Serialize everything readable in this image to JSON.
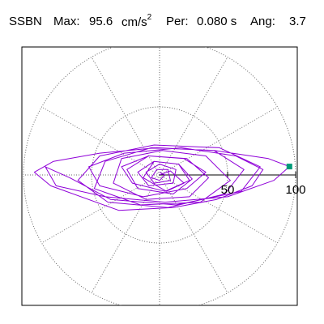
{
  "header": {
    "station": "SSBN",
    "max_label": "Max:",
    "max_value": "95.6",
    "max_unit": "cm/s",
    "max_unit_exp": "2",
    "per_label": "Per:",
    "per_value": "0.080 s",
    "ang_label": "Ang:",
    "ang_value": "3.7"
  },
  "colors": {
    "trace": "#8f00d8",
    "marker": "#009a78",
    "grid": "#666666",
    "frame": "#000000"
  },
  "chart_data": {
    "type": "scatter",
    "title": "",
    "coordinate_system": "polar",
    "r_ticks": [
      50,
      100
    ],
    "r_tick_labels": [
      "50",
      "100"
    ],
    "r_max": 100,
    "x_range": [
      -100,
      100
    ],
    "y_range": [
      -100,
      100
    ],
    "angular_grid_step_deg": 30,
    "grid": "dotted",
    "peak_point": {
      "x": 95.4,
      "y": 6.2,
      "magnitude": 95.6,
      "angle_deg": 3.7
    },
    "series": [
      {
        "type": "line",
        "points": [
          [
            0,
            0
          ],
          [
            8,
            3
          ],
          [
            18,
            -6
          ],
          [
            5,
            -12
          ],
          [
            -12,
            -2
          ],
          [
            -4,
            10
          ],
          [
            14,
            8
          ],
          [
            24,
            -3
          ],
          [
            10,
            -14
          ],
          [
            -16,
            -10
          ],
          [
            -24,
            4
          ],
          [
            -8,
            14
          ],
          [
            20,
            12
          ],
          [
            36,
            -2
          ],
          [
            22,
            -16
          ],
          [
            -10,
            -18
          ],
          [
            -34,
            -6
          ],
          [
            -28,
            12
          ],
          [
            2,
            18
          ],
          [
            34,
            14
          ],
          [
            52,
            -4
          ],
          [
            30,
            -20
          ],
          [
            -14,
            -22
          ],
          [
            -48,
            -10
          ],
          [
            -40,
            10
          ],
          [
            -6,
            20
          ],
          [
            40,
            18
          ],
          [
            62,
            4
          ],
          [
            48,
            -14
          ],
          [
            6,
            -24
          ],
          [
            -38,
            -20
          ],
          [
            -60,
            -4
          ],
          [
            -44,
            14
          ],
          [
            -4,
            22
          ],
          [
            44,
            20
          ],
          [
            74,
            6
          ],
          [
            60,
            -12
          ],
          [
            12,
            -22
          ],
          [
            -36,
            -18
          ],
          [
            -66,
            -2
          ],
          [
            -84,
            6
          ],
          [
            -76,
            -8
          ],
          [
            -40,
            -16
          ],
          [
            4,
            -20
          ],
          [
            50,
            -16
          ],
          [
            84,
            -4
          ],
          [
            95.4,
            6.2
          ],
          [
            80,
            12
          ],
          [
            40,
            18
          ],
          [
            -2,
            20
          ],
          [
            -44,
            16
          ],
          [
            -78,
            10
          ],
          [
            -92,
            2
          ],
          [
            -80,
            -8
          ],
          [
            -30,
            -26
          ],
          [
            10,
            -24
          ],
          [
            42,
            -18
          ],
          [
            68,
            -8
          ],
          [
            76,
            4
          ],
          [
            56,
            14
          ],
          [
            16,
            20
          ],
          [
            -26,
            16
          ],
          [
            -52,
            6
          ],
          [
            -44,
            -8
          ],
          [
            -12,
            -16
          ],
          [
            20,
            -10
          ],
          [
            34,
            2
          ],
          [
            18,
            12
          ],
          [
            -8,
            14
          ],
          [
            -28,
            6
          ],
          [
            -20,
            -6
          ],
          [
            4,
            -12
          ],
          [
            22,
            -4
          ],
          [
            14,
            8
          ],
          [
            -4,
            10
          ],
          [
            -16,
            2
          ],
          [
            -8,
            -8
          ],
          [
            10,
            -6
          ],
          [
            12,
            4
          ],
          [
            0,
            8
          ],
          [
            -10,
            2
          ],
          [
            -4,
            -6
          ],
          [
            8,
            -4
          ],
          [
            6,
            4
          ],
          [
            -2,
            4
          ],
          [
            -6,
            -2
          ],
          [
            0,
            -4
          ],
          [
            4,
            0
          ],
          [
            0,
            2
          ]
        ]
      }
    ]
  }
}
